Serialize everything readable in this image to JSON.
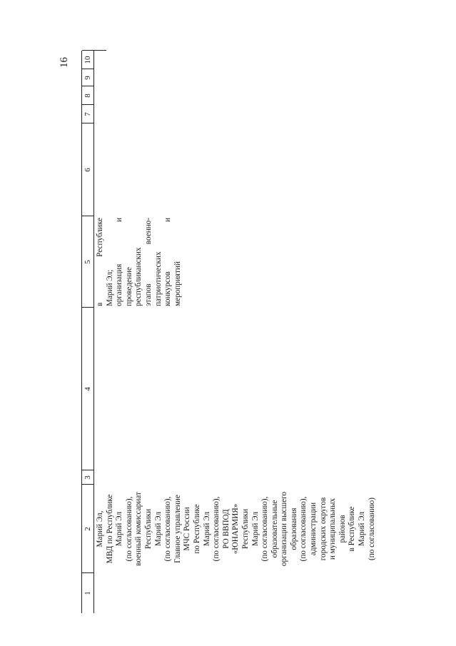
{
  "page_number": "16",
  "table": {
    "headers": [
      "1",
      "2",
      "3",
      "4",
      "5",
      "6",
      "7",
      "8",
      "9",
      "10"
    ],
    "column2_lines": [
      "Марий Эл,",
      "МВД по Республике",
      "Марий Эл",
      "(по согласованию),",
      "военный комиссариат",
      "Республики",
      "Марий Эл",
      "(по согласованию),",
      "Главное управление",
      "МЧС России",
      "по Республике",
      "Марий Эл",
      "(по согласованию),",
      "РО ВВПОД",
      "«ЮНАРМИЯ»",
      "Республики",
      "Марий Эл",
      "(по согласованию),",
      "образовательные",
      "организации высшего",
      "образования",
      "(по согласованию),",
      "администрации",
      "городских округов",
      "и муниципальных",
      "районов",
      "в Республике",
      "Марий Эл",
      "(по согласованию)"
    ],
    "column5": {
      "line1_left": "в",
      "line1_right": "Республике",
      "line2": "Марий Эл;",
      "line3_left": "организация",
      "line3_right": "и",
      "line4": "проведение",
      "line5": "республиканских",
      "line6_left": "этапов",
      "line6_right": "военно-",
      "line7": "патриотических",
      "line8_left": "конкурсов",
      "line8_right": "и",
      "line9": "мероприятий"
    }
  }
}
